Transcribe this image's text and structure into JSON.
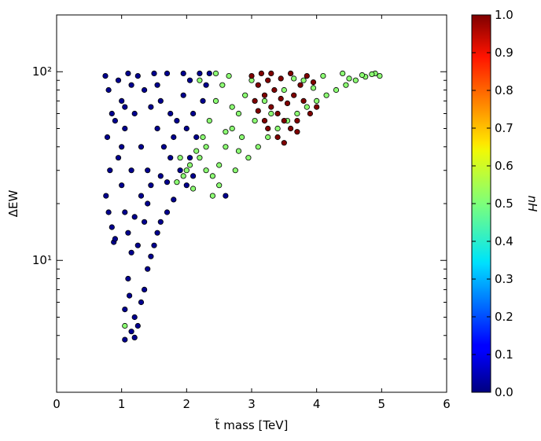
{
  "chart_data": {
    "type": "scatter",
    "title": "",
    "xlabel": "t̃ mass [TeV]",
    "ylabel": "ΔEW",
    "xlim": [
      0,
      6
    ],
    "ylim": [
      2,
      200
    ],
    "yscale": "log",
    "grid": false,
    "xticks": [
      {
        "value": 0,
        "label": "0"
      },
      {
        "value": 1,
        "label": "1"
      },
      {
        "value": 2,
        "label": "2"
      },
      {
        "value": 3,
        "label": "3"
      },
      {
        "value": 4,
        "label": "4"
      },
      {
        "value": 5,
        "label": "5"
      },
      {
        "value": 6,
        "label": "6"
      }
    ],
    "yticks": [
      {
        "value": 10,
        "label": "10¹"
      },
      {
        "value": 100,
        "label": "10²"
      }
    ],
    "colorbar": {
      "label": "nH",
      "range": [
        0,
        1
      ],
      "colormap": "jet",
      "ticks": [
        {
          "value": 0.0,
          "label": "0.0"
        },
        {
          "value": 0.1,
          "label": "0.1"
        },
        {
          "value": 0.2,
          "label": "0.2"
        },
        {
          "value": 0.3,
          "label": "0.3"
        },
        {
          "value": 0.4,
          "label": "0.4"
        },
        {
          "value": 0.5,
          "label": "0.5"
        },
        {
          "value": 0.6,
          "label": "0.6"
        },
        {
          "value": 0.7,
          "label": "0.7"
        },
        {
          "value": 0.8,
          "label": "0.8"
        },
        {
          "value": 0.9,
          "label": "0.9"
        },
        {
          "value": 1.0,
          "label": "1.0"
        }
      ]
    },
    "series": [
      {
        "color_value": 0.0,
        "color": "#00008f",
        "points": [
          [
            0.75,
            95
          ],
          [
            0.8,
            80
          ],
          [
            0.85,
            60
          ],
          [
            0.78,
            45
          ],
          [
            0.82,
            30
          ],
          [
            0.76,
            22
          ],
          [
            0.8,
            18
          ],
          [
            0.85,
            15
          ],
          [
            0.88,
            12.5
          ],
          [
            0.9,
            13
          ],
          [
            0.95,
            90
          ],
          [
            1.0,
            70
          ],
          [
            1.05,
            50
          ],
          [
            0.95,
            35
          ],
          [
            1.0,
            25
          ],
          [
            1.05,
            18
          ],
          [
            1.1,
            14
          ],
          [
            1.15,
            11
          ],
          [
            1.1,
            8
          ],
          [
            1.12,
            6.5
          ],
          [
            1.05,
            5.5
          ],
          [
            1.2,
            5
          ],
          [
            1.25,
            4.5
          ],
          [
            1.05,
            3.8
          ],
          [
            1.2,
            3.9
          ],
          [
            1.15,
            4.2
          ],
          [
            1.3,
            6
          ],
          [
            1.35,
            7
          ],
          [
            1.4,
            9
          ],
          [
            1.45,
            10.5
          ],
          [
            1.5,
            12
          ],
          [
            1.55,
            14
          ],
          [
            1.6,
            16
          ],
          [
            1.7,
            18
          ],
          [
            1.8,
            21
          ],
          [
            1.25,
            95
          ],
          [
            1.35,
            80
          ],
          [
            1.45,
            65
          ],
          [
            1.55,
            50
          ],
          [
            1.65,
            40
          ],
          [
            1.4,
            30
          ],
          [
            1.3,
            22
          ],
          [
            1.2,
            17
          ],
          [
            1.6,
            28
          ],
          [
            1.75,
            35
          ],
          [
            1.85,
            55
          ],
          [
            1.95,
            75
          ],
          [
            2.05,
            90
          ],
          [
            2.1,
            60
          ],
          [
            2.15,
            45
          ],
          [
            2.2,
            98
          ],
          [
            2.25,
            70
          ],
          [
            2.3,
            85
          ],
          [
            2.35,
            98
          ],
          [
            1.9,
            30
          ],
          [
            2.0,
            25
          ],
          [
            2.05,
            35
          ],
          [
            2.1,
            28
          ],
          [
            1.5,
            98
          ],
          [
            1.7,
            98
          ],
          [
            1.95,
            98
          ],
          [
            1.1,
            98
          ],
          [
            1.6,
            70
          ],
          [
            1.2,
            60
          ],
          [
            1.3,
            40
          ],
          [
            1.45,
            25
          ],
          [
            1.0,
            40
          ],
          [
            0.9,
            55
          ],
          [
            1.15,
            85
          ],
          [
            1.8,
            45
          ],
          [
            2.6,
            22
          ],
          [
            1.35,
            16
          ],
          [
            1.25,
            12
          ],
          [
            1.4,
            20
          ],
          [
            1.7,
            26
          ],
          [
            1.05,
            65
          ],
          [
            1.55,
            85
          ],
          [
            2.0,
            50
          ],
          [
            1.75,
            60
          ],
          [
            1.15,
            30
          ]
        ]
      },
      {
        "color_value": 0.5,
        "color": "#8cff73",
        "points": [
          [
            2.2,
            35
          ],
          [
            2.3,
            30
          ],
          [
            2.4,
            28
          ],
          [
            2.5,
            32
          ],
          [
            2.6,
            40
          ],
          [
            2.7,
            50
          ],
          [
            2.8,
            60
          ],
          [
            2.9,
            75
          ],
          [
            3.0,
            90
          ],
          [
            2.45,
            70
          ],
          [
            2.55,
            85
          ],
          [
            2.65,
            95
          ],
          [
            2.35,
            55
          ],
          [
            2.25,
            45
          ],
          [
            2.15,
            38
          ],
          [
            2.05,
            32
          ],
          [
            1.95,
            28
          ],
          [
            1.9,
            35
          ],
          [
            2.4,
            22
          ],
          [
            2.5,
            25
          ],
          [
            2.75,
            30
          ],
          [
            2.95,
            35
          ],
          [
            3.1,
            40
          ],
          [
            3.25,
            45
          ],
          [
            3.4,
            50
          ],
          [
            3.55,
            55
          ],
          [
            3.7,
            60
          ],
          [
            3.85,
            65
          ],
          [
            4.0,
            70
          ],
          [
            4.15,
            75
          ],
          [
            4.3,
            80
          ],
          [
            4.45,
            85
          ],
          [
            4.6,
            90
          ],
          [
            4.75,
            94
          ],
          [
            4.9,
            98
          ],
          [
            4.97,
            95
          ],
          [
            4.85,
            97
          ],
          [
            4.7,
            96
          ],
          [
            4.5,
            92
          ],
          [
            3.2,
            70
          ],
          [
            3.5,
            80
          ],
          [
            3.8,
            90
          ],
          [
            4.1,
            95
          ],
          [
            4.4,
            98
          ],
          [
            2.85,
            45
          ],
          [
            3.05,
            55
          ],
          [
            2.8,
            38
          ],
          [
            2.6,
            48
          ],
          [
            2.7,
            65
          ],
          [
            1.05,
            4.5
          ],
          [
            2.0,
            30
          ],
          [
            1.85,
            26
          ],
          [
            2.1,
            24
          ],
          [
            2.3,
            40
          ],
          [
            3.65,
            92
          ],
          [
            3.95,
            82
          ],
          [
            2.2,
            90
          ],
          [
            2.45,
            98
          ],
          [
            3.3,
            60
          ]
        ]
      },
      {
        "color_value": 1.0,
        "color": "#7f0000",
        "points": [
          [
            3.0,
            95
          ],
          [
            3.1,
            85
          ],
          [
            3.2,
            75
          ],
          [
            3.3,
            65
          ],
          [
            3.4,
            60
          ],
          [
            3.5,
            55
          ],
          [
            3.6,
            50
          ],
          [
            3.7,
            48
          ],
          [
            3.15,
            98
          ],
          [
            3.25,
            90
          ],
          [
            3.35,
            80
          ],
          [
            3.45,
            72
          ],
          [
            3.55,
            68
          ],
          [
            3.65,
            75
          ],
          [
            3.75,
            85
          ],
          [
            3.85,
            95
          ],
          [
            3.05,
            70
          ],
          [
            3.2,
            55
          ],
          [
            3.4,
            45
          ],
          [
            3.5,
            42
          ],
          [
            3.7,
            55
          ],
          [
            3.8,
            70
          ],
          [
            3.9,
            60
          ],
          [
            4.0,
            65
          ],
          [
            3.6,
            98
          ],
          [
            3.45,
            92
          ],
          [
            3.3,
            98
          ],
          [
            3.95,
            88
          ],
          [
            3.1,
            62
          ],
          [
            3.25,
            50
          ]
        ]
      }
    ]
  }
}
